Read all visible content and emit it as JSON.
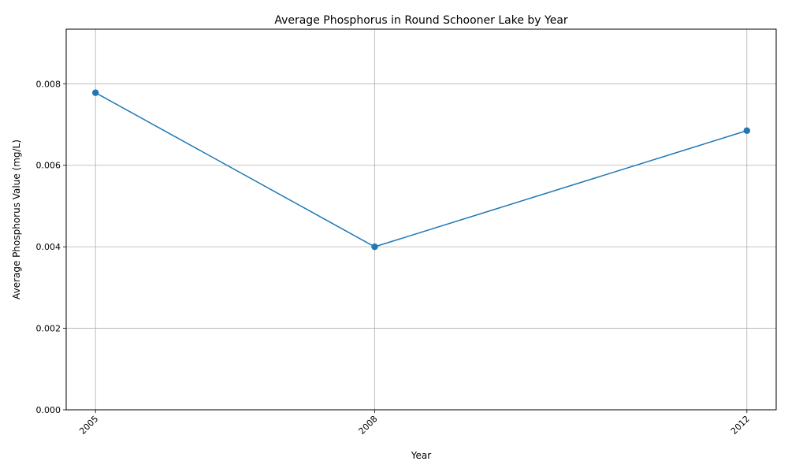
{
  "chart_data": {
    "type": "line",
    "title": "Average Phosphorus in Round Schooner Lake by Year",
    "xlabel": "Year",
    "ylabel": "Average Phosphorus Value (mg/L)",
    "x": [
      2005,
      2008,
      2012
    ],
    "xticks": [
      "2005",
      "2008",
      "2012"
    ],
    "series": [
      {
        "values": [
          0.00778,
          0.004,
          0.00685
        ],
        "color": "#1f77b4",
        "marker": "circle"
      }
    ],
    "yticks": [
      "0.000",
      "0.002",
      "0.004",
      "0.006",
      "0.008"
    ],
    "ylim": [
      0,
      0.00934
    ],
    "grid": true
  }
}
